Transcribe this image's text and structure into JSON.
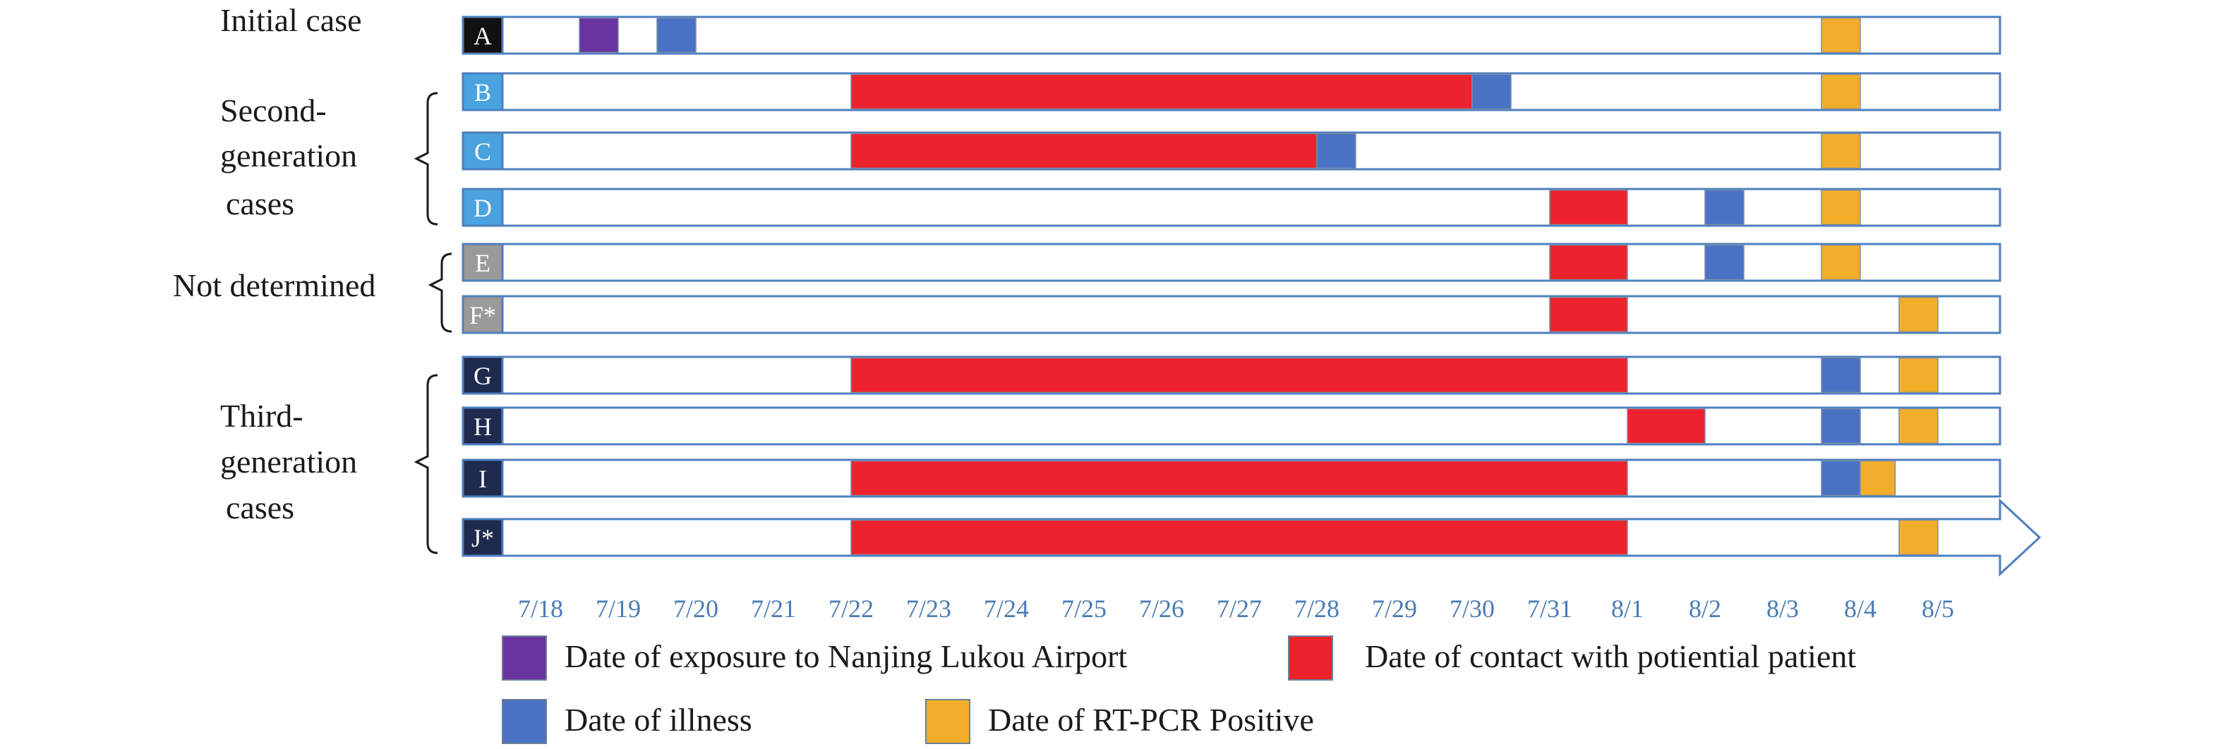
{
  "colors": {
    "exposure": "#6a34a0",
    "contact": "#ee222c",
    "illness": "#4a72c4",
    "rtpcr": "#f2ae2a",
    "outline": "#4e7fbf",
    "generation_initial": "#111111",
    "generation_second": "#4aa3de",
    "generation_undetermined": "#9a9a9a",
    "generation_third": "#1e2a4e"
  },
  "groups": [
    {
      "label_lines": [
        "Initial case"
      ],
      "rows": [
        "A"
      ],
      "bracket": false
    },
    {
      "label_lines": [
        "Second-",
        "generation",
        "cases"
      ],
      "rows": [
        "B",
        "C",
        "D"
      ],
      "bracket": true
    },
    {
      "label_lines": [
        "Not determined"
      ],
      "rows": [
        "E",
        "F*"
      ],
      "bracket": true
    },
    {
      "label_lines": [
        "Third-",
        "generation",
        "cases"
      ],
      "rows": [
        "G",
        "H",
        "I",
        "J*"
      ],
      "bracket": true
    }
  ],
  "legend": [
    {
      "key": "exposure",
      "label": "Date of exposure to Nanjing Lukou Airport"
    },
    {
      "key": "contact",
      "label": "Date of contact with potiential patient"
    },
    {
      "key": "illness",
      "label": "Date of illness"
    },
    {
      "key": "rtpcr",
      "label": "Date of RT-PCR Positive"
    }
  ],
  "chart_data": {
    "type": "timeline",
    "x_tick_labels": [
      "7/18",
      "7/19",
      "7/20",
      "7/21",
      "7/22",
      "7/23",
      "7/24",
      "7/25",
      "7/26",
      "7/27",
      "7/28",
      "7/29",
      "7/30",
      "7/31",
      "8/1",
      "8/2",
      "8/3",
      "8/4",
      "8/5"
    ],
    "x_unit": "day index, 0 = 7/18 tick, 1 = 7/19 tick",
    "rows": [
      {
        "id": "A",
        "generation": "initial",
        "events": [
          {
            "type": "exposure",
            "start": 0.5,
            "end": 1.0
          },
          {
            "type": "illness",
            "start": 1.5,
            "end": 2.0
          },
          {
            "type": "rtpcr",
            "start": 16.5,
            "end": 17.0
          }
        ]
      },
      {
        "id": "B",
        "generation": "second",
        "events": [
          {
            "type": "contact",
            "start": 4.0,
            "end": 12.0
          },
          {
            "type": "illness",
            "start": 12.0,
            "end": 12.5
          },
          {
            "type": "rtpcr",
            "start": 16.5,
            "end": 17.0
          }
        ]
      },
      {
        "id": "C",
        "generation": "second",
        "events": [
          {
            "type": "contact",
            "start": 4.0,
            "end": 10.0
          },
          {
            "type": "illness",
            "start": 10.0,
            "end": 10.5
          },
          {
            "type": "rtpcr",
            "start": 16.5,
            "end": 17.0
          }
        ]
      },
      {
        "id": "D",
        "generation": "second",
        "events": [
          {
            "type": "contact",
            "start": 13.0,
            "end": 14.0
          },
          {
            "type": "illness",
            "start": 15.0,
            "end": 15.5
          },
          {
            "type": "rtpcr",
            "start": 16.5,
            "end": 17.0
          }
        ]
      },
      {
        "id": "E",
        "generation": "undetermined",
        "events": [
          {
            "type": "contact",
            "start": 13.0,
            "end": 14.0
          },
          {
            "type": "illness",
            "start": 15.0,
            "end": 15.5
          },
          {
            "type": "rtpcr",
            "start": 16.5,
            "end": 17.0
          }
        ]
      },
      {
        "id": "F*",
        "generation": "undetermined",
        "events": [
          {
            "type": "contact",
            "start": 13.0,
            "end": 14.0
          },
          {
            "type": "rtpcr",
            "start": 17.5,
            "end": 18.0
          }
        ]
      },
      {
        "id": "G",
        "generation": "third",
        "events": [
          {
            "type": "contact",
            "start": 4.0,
            "end": 14.0
          },
          {
            "type": "illness",
            "start": 16.5,
            "end": 17.0
          },
          {
            "type": "rtpcr",
            "start": 17.5,
            "end": 18.0
          }
        ]
      },
      {
        "id": "H",
        "generation": "third",
        "events": [
          {
            "type": "contact",
            "start": 14.0,
            "end": 15.0
          },
          {
            "type": "illness",
            "start": 16.5,
            "end": 17.0
          },
          {
            "type": "rtpcr",
            "start": 17.5,
            "end": 18.0
          }
        ]
      },
      {
        "id": "I",
        "generation": "third",
        "events": [
          {
            "type": "contact",
            "start": 4.0,
            "end": 14.0
          },
          {
            "type": "illness",
            "start": 16.5,
            "end": 17.0
          },
          {
            "type": "rtpcr",
            "start": 17.0,
            "end": 17.45
          }
        ]
      },
      {
        "id": "J*",
        "generation": "third",
        "arrow": true,
        "events": [
          {
            "type": "contact",
            "start": 4.0,
            "end": 14.0
          },
          {
            "type": "rtpcr",
            "start": 17.5,
            "end": 18.0
          }
        ]
      }
    ]
  }
}
